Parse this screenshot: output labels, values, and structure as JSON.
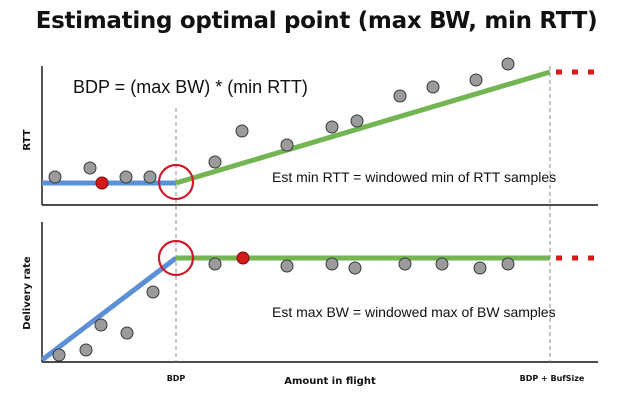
{
  "title": "Estimating optimal point (max BW, min RTT)",
  "formula": "BDP = (max BW) * (min RTT)",
  "top_panel": {
    "y_label": "RTT",
    "annotation": "Est min RTT = windowed min of RTT samples"
  },
  "bottom_panel": {
    "y_label": "Delivery rate",
    "annotation": "Est max BW = windowed max of BW samples"
  },
  "x_axis": {
    "label": "Amount in flight",
    "tick_bdp": "BDP",
    "tick_bdp_buf": "BDP + BufSize"
  },
  "colors": {
    "blue_line": "#5b8fd6",
    "green_line": "#72b552",
    "dot_fill": "#9b9b9b",
    "highlight_dot": "#d61a1a",
    "circle": "#d11a2a",
    "dotted_red": "#d61a1a"
  }
}
